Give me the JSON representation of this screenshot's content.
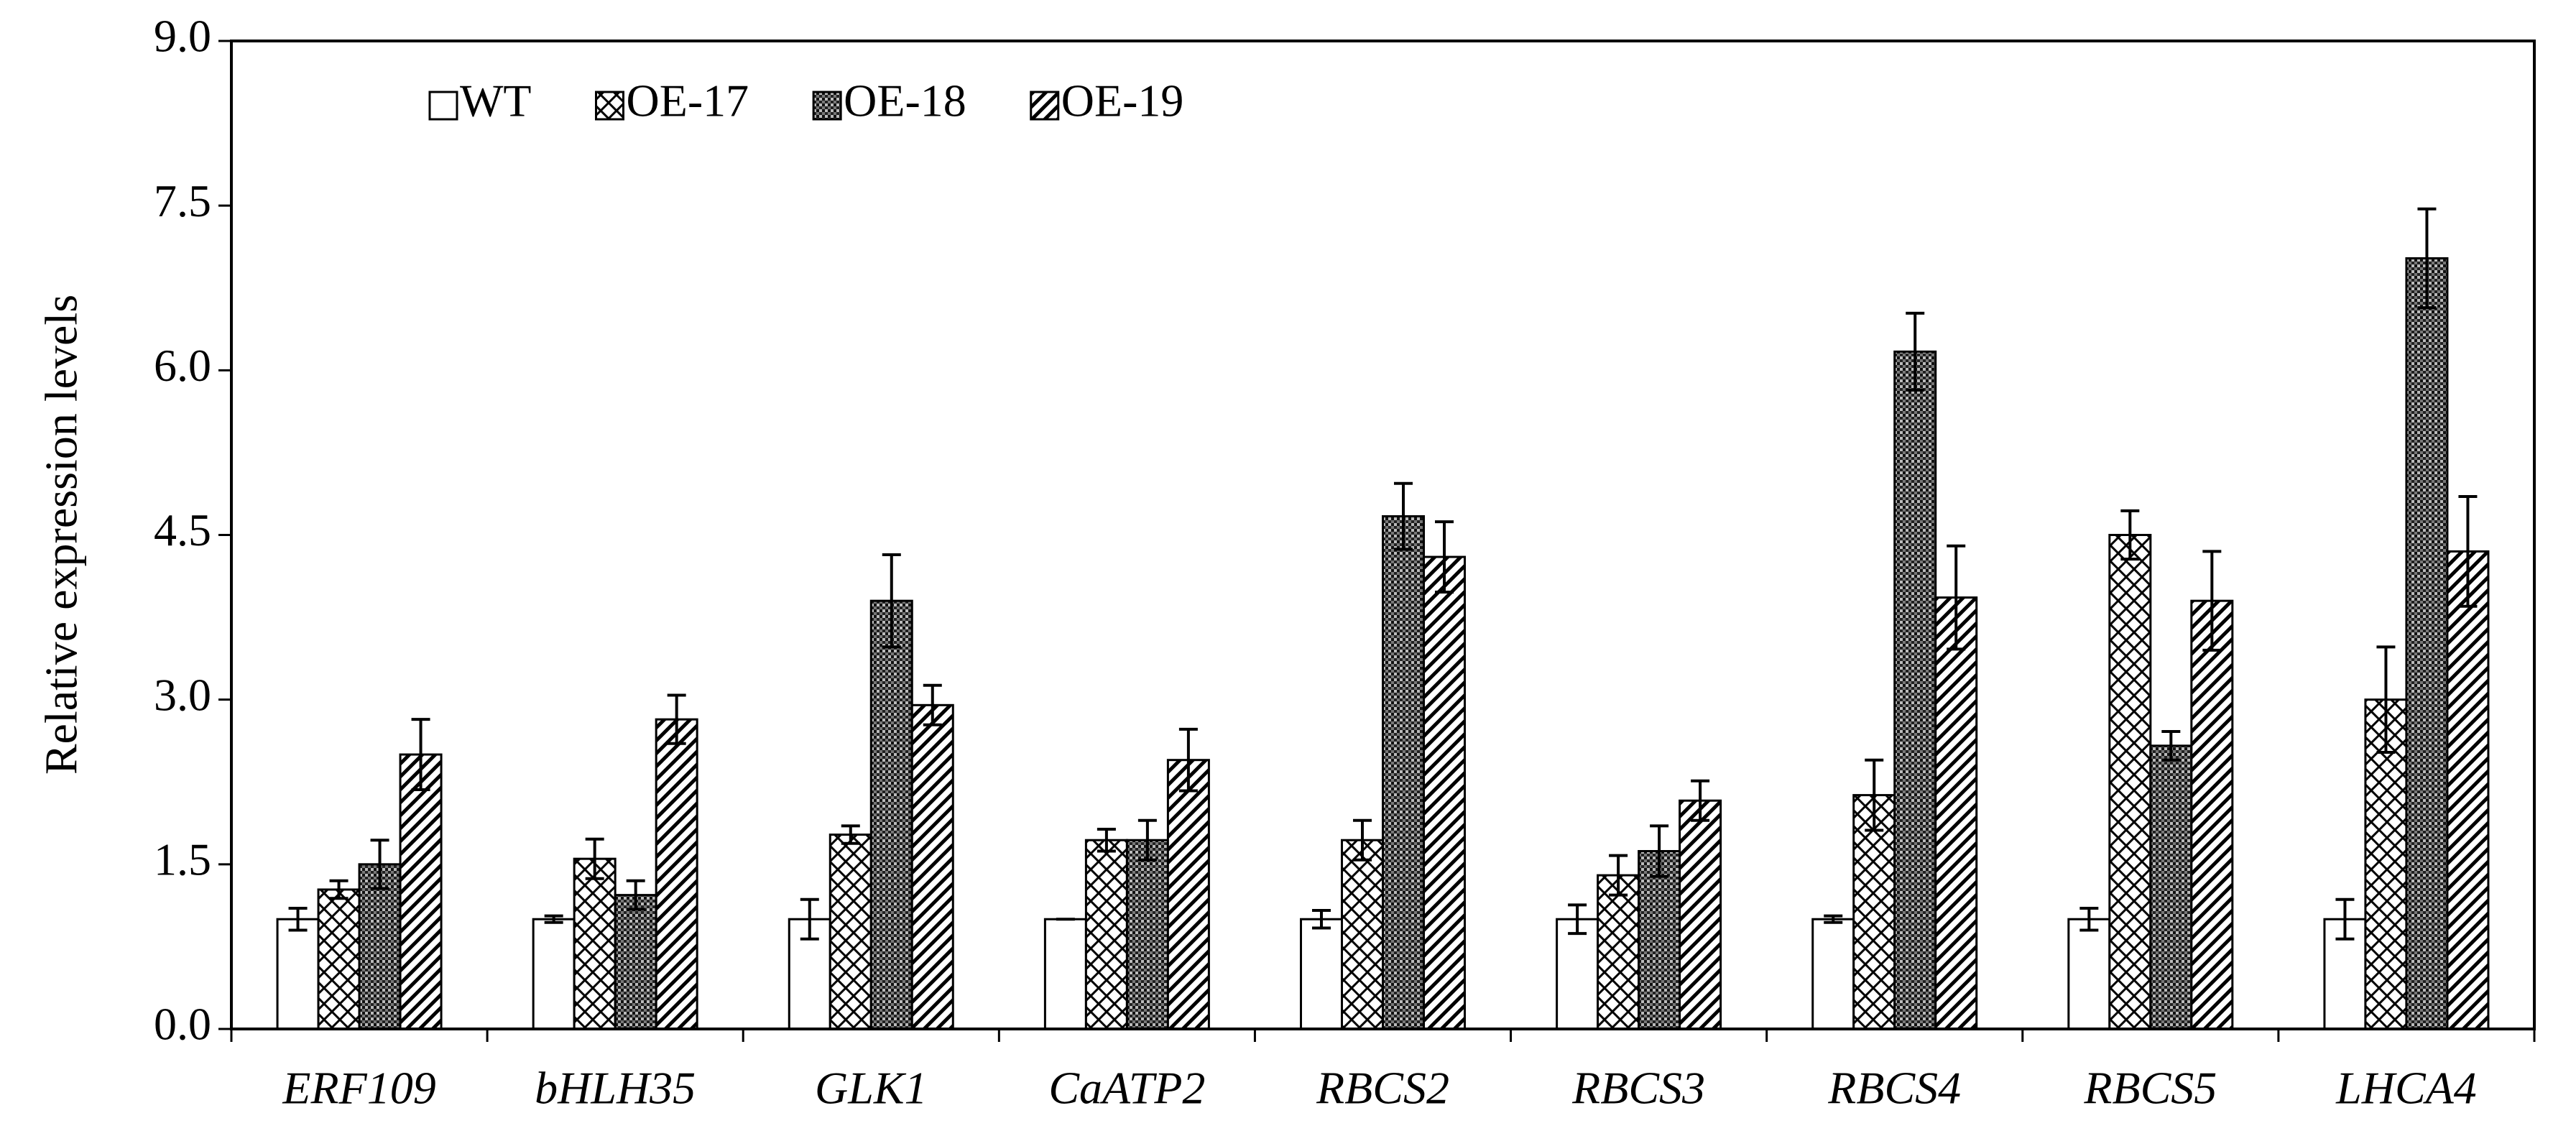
{
  "chart_data": {
    "type": "bar",
    "y_label": "Relative expression levels",
    "categories": [
      "ERF109",
      "bHLH35",
      "GLK1",
      "CaATP2",
      "RBCS2",
      "RBCS3",
      "RBCS4",
      "RBCS5",
      "LHCA4"
    ],
    "series": [
      {
        "name": "WT",
        "pattern": "none",
        "values": [
          1.0,
          1.0,
          1.0,
          1.0,
          1.0,
          1.0,
          1.0,
          1.0,
          1.0
        ],
        "errors": [
          0.1,
          0.03,
          0.18,
          0.0,
          0.08,
          0.13,
          0.03,
          0.1,
          0.18
        ]
      },
      {
        "name": "OE-17",
        "pattern": "crosshatch",
        "values": [
          1.27,
          1.55,
          1.77,
          1.72,
          1.72,
          1.4,
          2.13,
          4.5,
          3.0
        ],
        "errors": [
          0.08,
          0.18,
          0.08,
          0.1,
          0.18,
          0.18,
          0.32,
          0.22,
          0.48
        ]
      },
      {
        "name": "OE-18",
        "pattern": "dense",
        "values": [
          1.5,
          1.22,
          3.9,
          1.72,
          4.67,
          1.62,
          6.17,
          2.58,
          7.02
        ],
        "errors": [
          0.22,
          0.13,
          0.42,
          0.18,
          0.3,
          0.23,
          0.35,
          0.13,
          0.45
        ]
      },
      {
        "name": "OE-19",
        "pattern": "diagonal",
        "values": [
          2.5,
          2.82,
          2.95,
          2.45,
          4.3,
          2.08,
          3.93,
          3.9,
          4.35
        ],
        "errors": [
          0.32,
          0.22,
          0.18,
          0.28,
          0.32,
          0.18,
          0.47,
          0.45,
          0.5
        ]
      }
    ],
    "ylim": [
      0,
      9
    ],
    "yticks": [
      {
        "value": 0,
        "label": "0.0"
      },
      {
        "value": 1.5,
        "label": "1.5"
      },
      {
        "value": 3,
        "label": "3.0"
      },
      {
        "value": 4.5,
        "label": "4.5"
      },
      {
        "value": 6,
        "label": "6.0"
      },
      {
        "value": 7.5,
        "label": "7.5"
      },
      {
        "value": 9,
        "label": "9.0"
      }
    ],
    "legend": "top-left"
  }
}
